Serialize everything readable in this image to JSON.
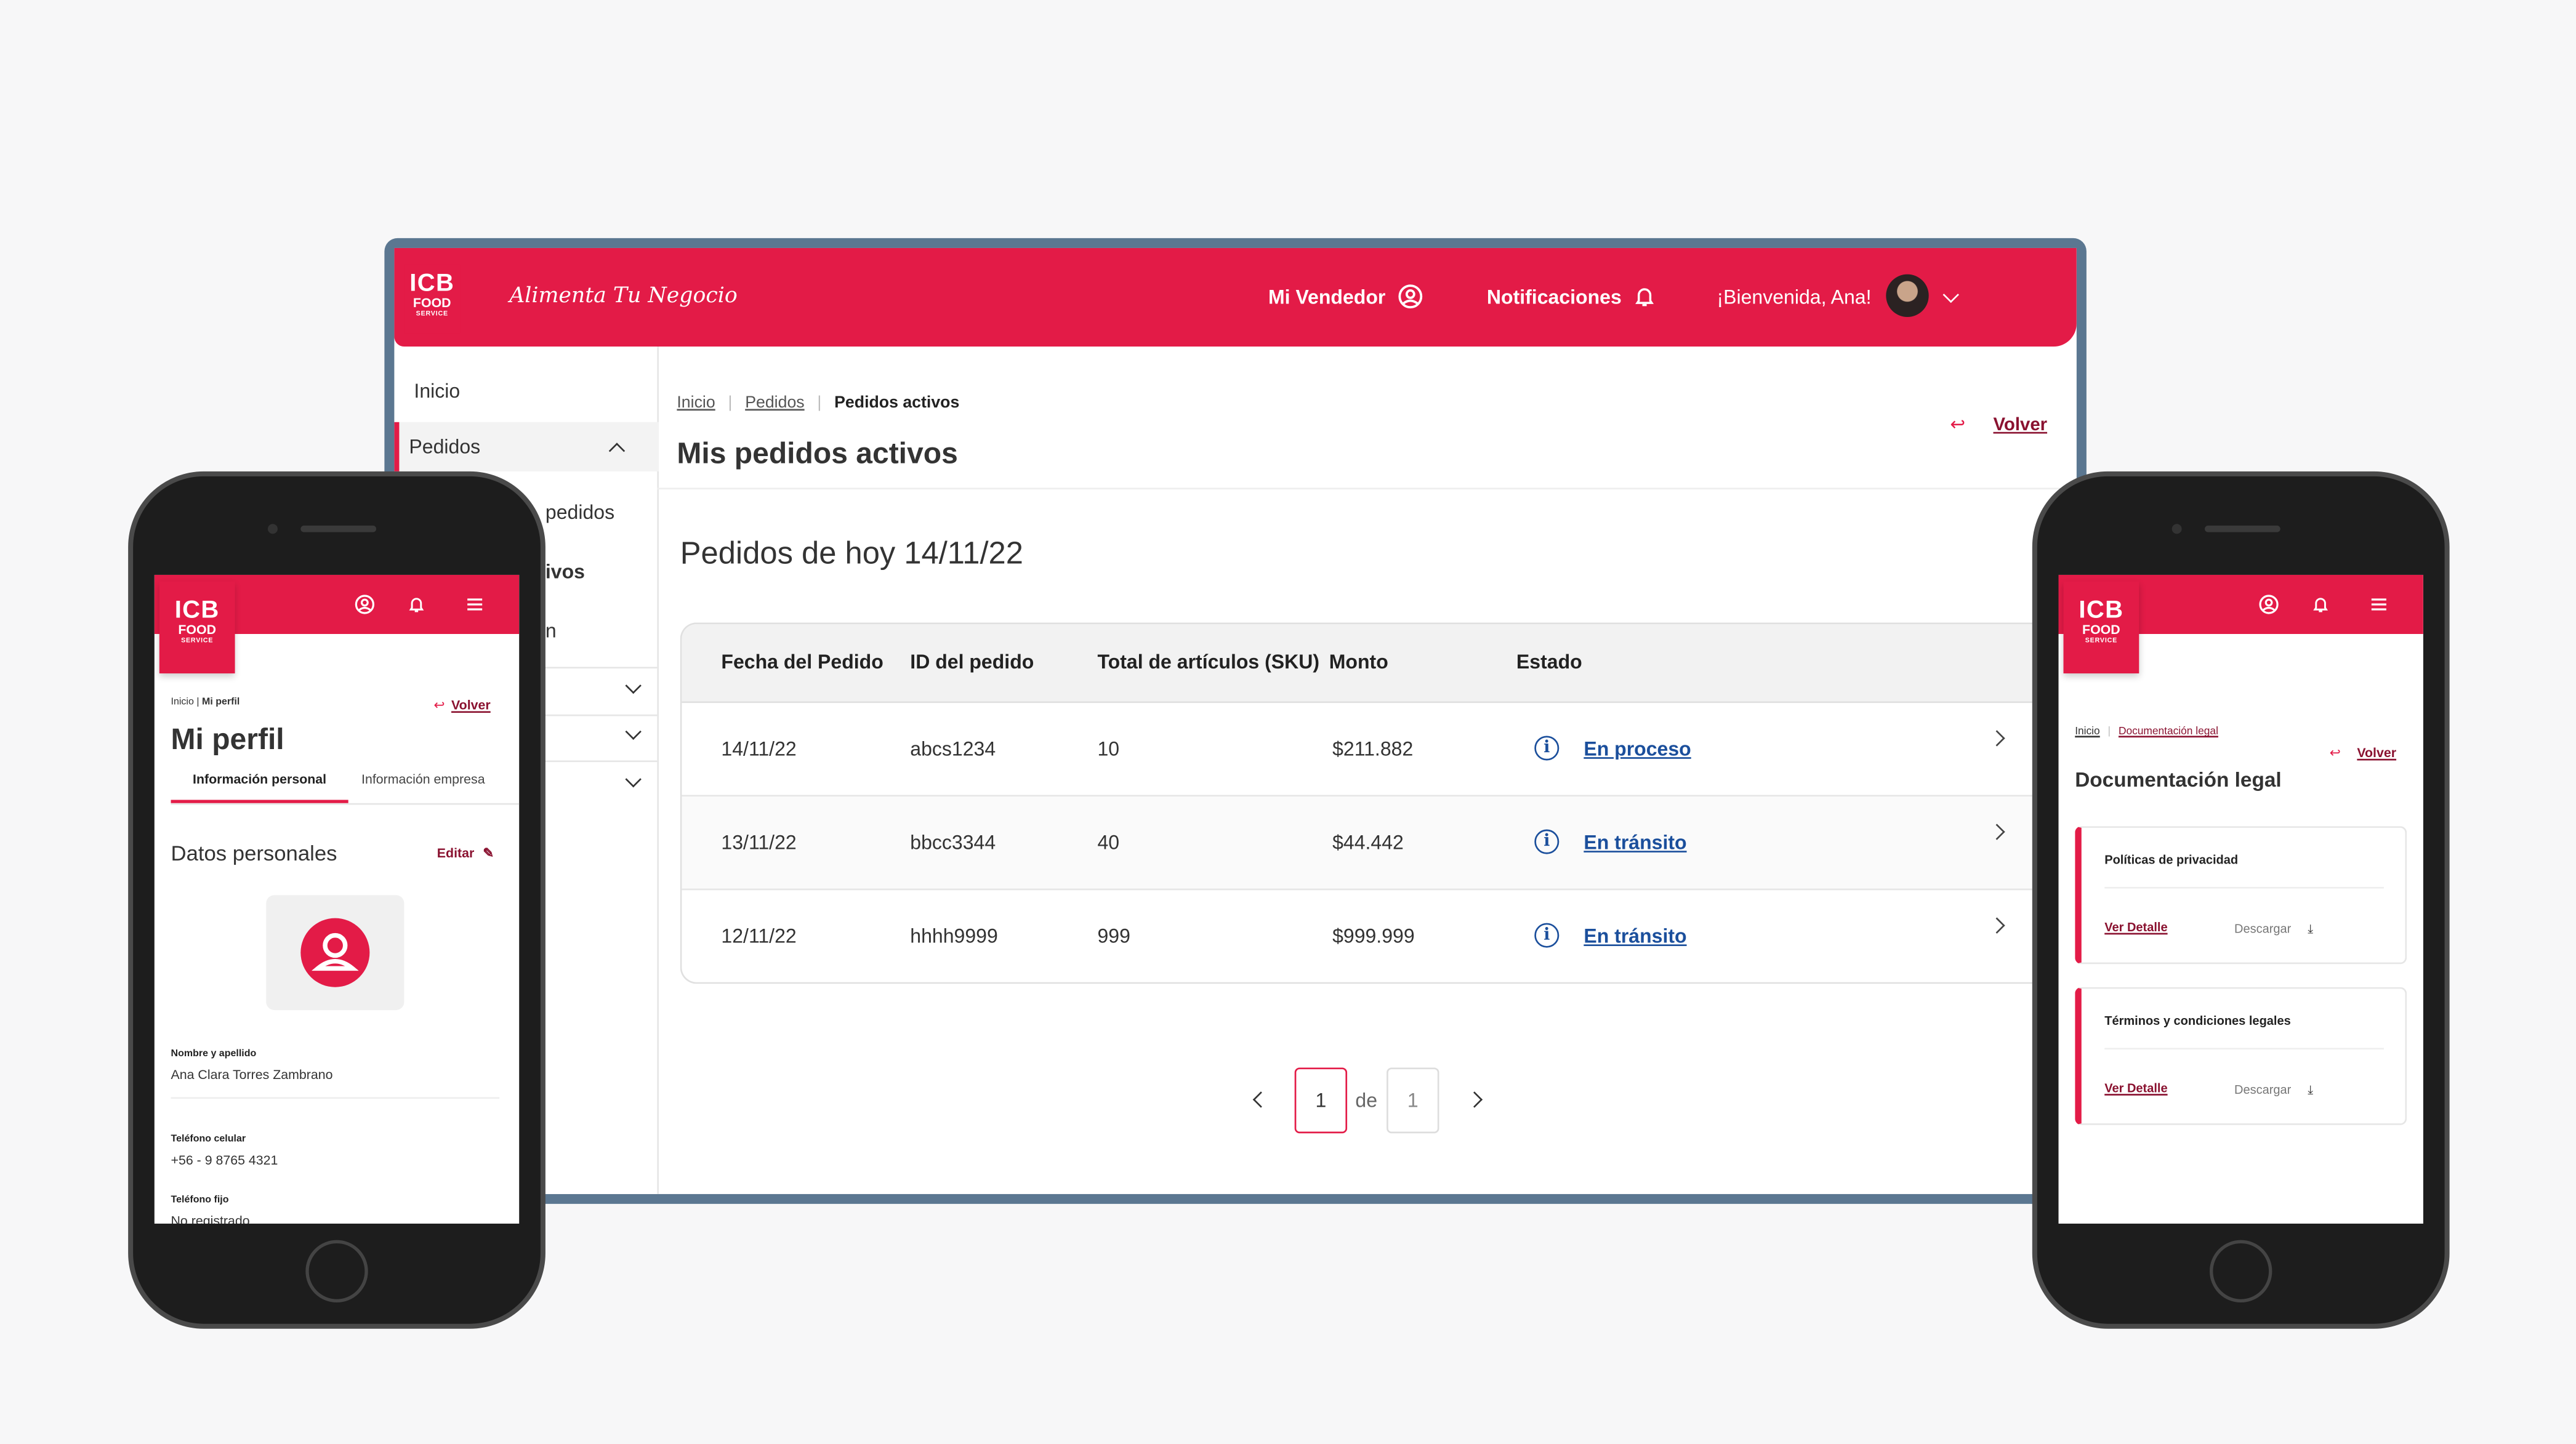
{
  "desktop": {
    "brand": {
      "logo_line1": "ICB",
      "logo_line2": "FOOD",
      "logo_line3": "SERVICE",
      "slogan": "Alimenta Tu Negocio"
    },
    "nav": {
      "vendor": "Mi Vendedor",
      "notifications": "Notificaciones",
      "welcome": "¡Bienvenida, Ana!"
    },
    "sidebar": {
      "items": [
        "Inicio",
        "Pedidos",
        "pedidos",
        "ivos",
        "n"
      ]
    },
    "breadcrumb": {
      "home": "Inicio",
      "orders": "Pedidos",
      "current": "Pedidos activos"
    },
    "back_label": "Volver",
    "page_title": "Mis pedidos activos",
    "section_title": "Pedidos de hoy 14/11/22",
    "table": {
      "headers": [
        "Fecha del Pedido",
        "ID del pedido",
        "Total de artículos (SKU)",
        "Monto",
        "Estado"
      ],
      "rows": [
        {
          "date": "14/11/22",
          "id": "abcs1234",
          "sku": "10",
          "amount": "$211.882",
          "status": "En proceso"
        },
        {
          "date": "13/11/22",
          "id": "bbcc3344",
          "sku": "40",
          "amount": "$44.442",
          "status": "En tránsito"
        },
        {
          "date": "12/11/22",
          "id": "hhhh9999",
          "sku": "999",
          "amount": "$999.999",
          "status": "En tránsito"
        }
      ]
    },
    "pagination": {
      "current": "1",
      "sep": "de",
      "total": "1"
    }
  },
  "phone_left": {
    "breadcrumb": {
      "home": "Inicio",
      "sep": " | ",
      "current": "Mi perfil"
    },
    "back_label": "Volver",
    "title": "Mi perfil",
    "tabs": [
      "Información personal",
      "Información empresa"
    ],
    "section": "Datos personales",
    "edit_label": "Editar",
    "fields": [
      {
        "label": "Nombre y apellido",
        "value": "Ana Clara Torres Zambrano"
      },
      {
        "label": "Teléfono celular",
        "value": "+56 - 9 8765 4321"
      },
      {
        "label": "Teléfono fijo",
        "value": "No registrado"
      }
    ]
  },
  "phone_right": {
    "breadcrumb": {
      "home": "Inicio",
      "current": "Documentación legal"
    },
    "back_label": "Volver",
    "title": "Documentación legal",
    "cards": [
      {
        "title": "Políticas de privacidad",
        "detail": "Ver Detalle",
        "download": "Descargar"
      },
      {
        "title": "Términos y condiciones legales",
        "detail": "Ver Detalle",
        "download": "Descargar"
      }
    ]
  },
  "colors": {
    "brand": "#e31b47",
    "link": "#1b4f9c",
    "frame": "#5b7791"
  }
}
